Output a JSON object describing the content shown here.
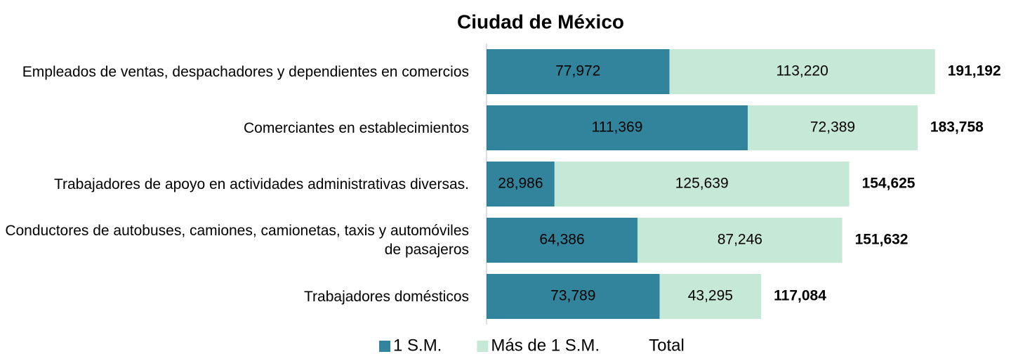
{
  "chart_data": {
    "type": "stacked-bar-horizontal",
    "title": "Ciudad de México",
    "categories": [
      "Empleados de ventas, despachadores y dependientes en comercios",
      "Comerciantes en establecimientos",
      "Trabajadores de apoyo en actividades administrativas diversas.",
      "Conductores de autobuses, camiones, camionetas, taxis y automóviles de pasajeros",
      "Trabajadores domésticos"
    ],
    "series": [
      {
        "name": "1 S.M.",
        "color": "#31849b",
        "values": [
          77972,
          111369,
          28986,
          64386,
          73789
        ],
        "value_labels": [
          "77,972",
          "111,369",
          "28,986",
          "64,386",
          "73,789"
        ]
      },
      {
        "name": "Más de 1 S.M.",
        "color": "#c6e9d7",
        "values": [
          113220,
          72389,
          125639,
          87246,
          43295
        ],
        "value_labels": [
          "113,220",
          "72,389",
          "125,639",
          "87,246",
          "43,295"
        ]
      },
      {
        "name": "Total",
        "color": "none",
        "values": [
          191192,
          183758,
          154625,
          151632,
          117084
        ],
        "value_labels": [
          "191,192",
          "183,758",
          "154,625",
          "151,632",
          "117,084"
        ]
      }
    ],
    "xlim": [
      0,
      220000
    ],
    "legend": "bottom"
  }
}
